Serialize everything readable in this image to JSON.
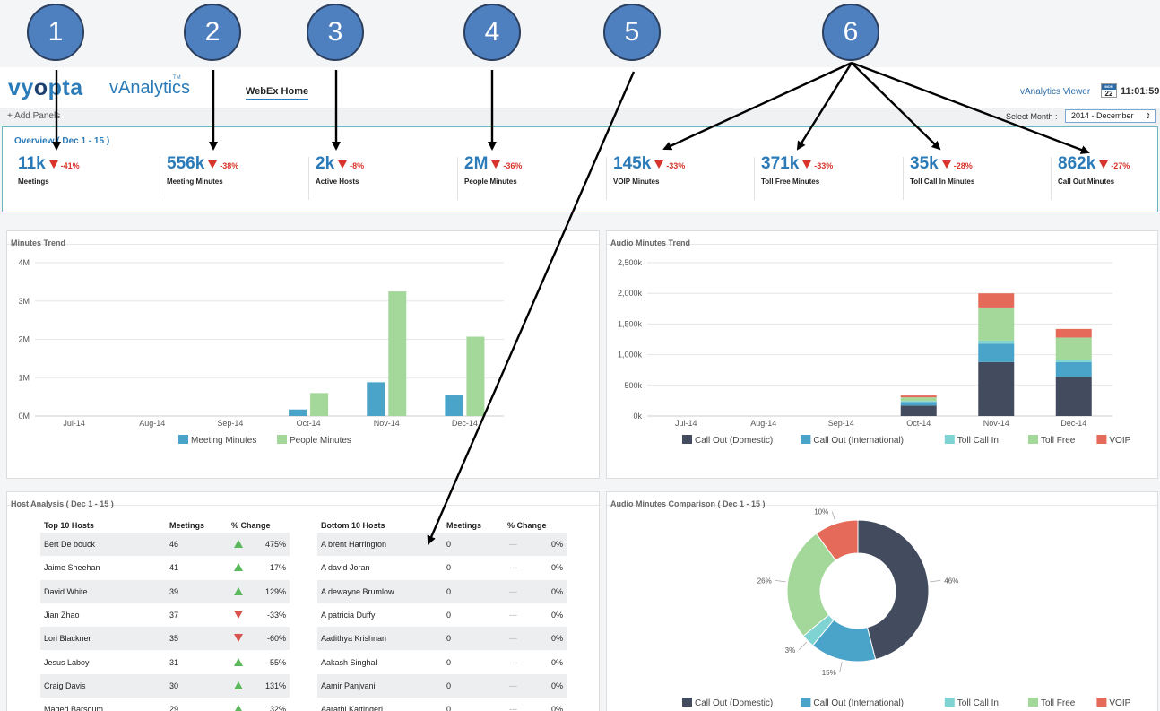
{
  "header": {
    "logo_text_a": "vy",
    "logo_text_o": "o",
    "logo_text_b": "pta",
    "logo_sub": "vAnalytics",
    "tm": "TM",
    "nav": "WebEx Home",
    "viewer": "vAnalytics Viewer",
    "cal_month": "MON",
    "cal_day": "22",
    "clock": "11:01:59"
  },
  "toolbar": {
    "add_panel": "+ Add Panels",
    "select_label": "Select Month :",
    "select_value": "2014 - December"
  },
  "overview": {
    "title": "Overview ( Dec 1 - 15 )",
    "kpis": [
      {
        "value": "11k",
        "delta": "-41%",
        "label": "Meetings"
      },
      {
        "value": "556k",
        "delta": "-38%",
        "label": "Meeting Minutes"
      },
      {
        "value": "2k",
        "delta": "-8%",
        "label": "Active Hosts"
      },
      {
        "value": "2M",
        "delta": "-36%",
        "label": "People Minutes"
      },
      {
        "value": "145k",
        "delta": "-33%",
        "label": "VOIP Minutes"
      },
      {
        "value": "371k",
        "delta": "-33%",
        "label": "Toll Free Minutes"
      },
      {
        "value": "35k",
        "delta": "-28%",
        "label": "Toll Call In Minutes"
      },
      {
        "value": "862k",
        "delta": "-27%",
        "label": "Call Out Minutes"
      }
    ]
  },
  "panels": {
    "minutes_trend": "Minutes Trend",
    "audio_trend": "Audio Minutes Trend",
    "host_analysis": "Host Analysis ( Dec 1 - 15 )",
    "audio_comparison": "Audio Minutes Comparison ( Dec 1 - 15 )"
  },
  "colors": {
    "meeting": "#4aa3c8",
    "people": "#a3d89a",
    "call_out_domestic": "#434c5e",
    "call_out_international": "#4aa3c8",
    "toll_call_in": "#7fd3d3",
    "toll_free": "#a3d89a",
    "voip": "#e66a5a"
  },
  "chart_data": [
    {
      "type": "bar",
      "title": "Minutes Trend",
      "categories": [
        "Jul-14",
        "Aug-14",
        "Sep-14",
        "Oct-14",
        "Nov-14",
        "Dec-14"
      ],
      "series": [
        {
          "name": "Meeting Minutes",
          "values": [
            0,
            0,
            0,
            0.17,
            0.88,
            0.56
          ]
        },
        {
          "name": "People Minutes",
          "values": [
            0,
            0,
            0,
            0.6,
            3.25,
            2.07
          ]
        }
      ],
      "yticks": [
        "0M",
        "1M",
        "2M",
        "3M",
        "4M"
      ],
      "ylim": [
        0,
        4
      ],
      "grid": true,
      "legend": "bottom"
    },
    {
      "type": "bar",
      "stacked": true,
      "title": "Audio Minutes Trend",
      "categories": [
        "Jul-14",
        "Aug-14",
        "Sep-14",
        "Oct-14",
        "Nov-14",
        "Dec-14"
      ],
      "series": [
        {
          "name": "Call Out (Domestic)",
          "values": [
            0,
            0,
            0,
            170,
            880,
            640
          ]
        },
        {
          "name": "Call Out (International)",
          "values": [
            0,
            0,
            0,
            60,
            300,
            240
          ]
        },
        {
          "name": "Toll Call In",
          "values": [
            0,
            0,
            0,
            15,
            50,
            40
          ]
        },
        {
          "name": "Toll Free",
          "values": [
            0,
            0,
            0,
            60,
            540,
            360
          ]
        },
        {
          "name": "VOIP",
          "values": [
            0,
            0,
            0,
            30,
            230,
            140
          ]
        }
      ],
      "yticks": [
        "0k",
        "500k",
        "1,000k",
        "1,500k",
        "2,000k",
        "2,500k"
      ],
      "ylim": [
        0,
        2500
      ],
      "grid": true,
      "legend": "bottom"
    },
    {
      "type": "pie",
      "donut": true,
      "title": "Audio Minutes Comparison ( Dec 1 - 15 )",
      "slices": [
        {
          "name": "Call Out (Domestic)",
          "value": 46,
          "label": "46%"
        },
        {
          "name": "Call Out (International)",
          "value": 15,
          "label": "15%"
        },
        {
          "name": "Toll Call In",
          "value": 3,
          "label": "3%"
        },
        {
          "name": "Toll Free",
          "value": 26,
          "label": "26%"
        },
        {
          "name": "VOIP",
          "value": 10,
          "label": "10%"
        }
      ],
      "legend": "bottom"
    }
  ],
  "top_hosts": {
    "headers": [
      "Top 10 Hosts",
      "Meetings",
      "% Change"
    ],
    "rows": [
      {
        "name": "Bert De bouck",
        "meetings": "46",
        "dir": "up",
        "change": "475%"
      },
      {
        "name": "Jaime Sheehan",
        "meetings": "41",
        "dir": "up",
        "change": "17%"
      },
      {
        "name": "David White",
        "meetings": "39",
        "dir": "up",
        "change": "129%"
      },
      {
        "name": "Jian Zhao",
        "meetings": "37",
        "dir": "down",
        "change": "-33%"
      },
      {
        "name": "Lori Blackner",
        "meetings": "35",
        "dir": "down",
        "change": "-60%"
      },
      {
        "name": "Jesus Laboy",
        "meetings": "31",
        "dir": "up",
        "change": "55%"
      },
      {
        "name": "Craig Davis",
        "meetings": "30",
        "dir": "up",
        "change": "131%"
      },
      {
        "name": "Maged Barsoum",
        "meetings": "29",
        "dir": "up",
        "change": "32%"
      }
    ]
  },
  "bottom_hosts": {
    "headers": [
      "Bottom 10 Hosts",
      "Meetings",
      "% Change"
    ],
    "rows": [
      {
        "name": "A brent Harrington",
        "meetings": "0",
        "dash": "---",
        "change": "0%"
      },
      {
        "name": "A david Joran",
        "meetings": "0",
        "dash": "---",
        "change": "0%"
      },
      {
        "name": "A dewayne Brumlow",
        "meetings": "0",
        "dash": "---",
        "change": "0%"
      },
      {
        "name": "A patricia Duffy",
        "meetings": "0",
        "dash": "---",
        "change": "0%"
      },
      {
        "name": "Aadithya Krishnan",
        "meetings": "0",
        "dash": "---",
        "change": "0%"
      },
      {
        "name": "Aakash Singhal",
        "meetings": "0",
        "dash": "---",
        "change": "0%"
      },
      {
        "name": "Aamir Panjvani",
        "meetings": "0",
        "dash": "---",
        "change": "0%"
      },
      {
        "name": "Aarathi Kattingeri",
        "meetings": "0",
        "dash": "---",
        "change": "0%"
      }
    ]
  },
  "callouts": [
    "1",
    "2",
    "3",
    "4",
    "5",
    "6"
  ]
}
